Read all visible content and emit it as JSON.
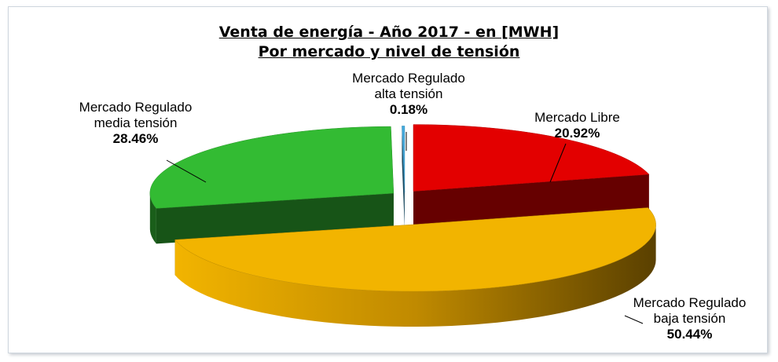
{
  "chart_data": {
    "type": "pie3d",
    "title": "Venta de energía - Año 2017 - en [MWH]",
    "subtitle": "Por mercado y nivel de tensión",
    "categories": [
      "Mercado Libre",
      "Mercado Regulado baja tensión",
      "Mercado Regulado media tensión",
      "Mercado Regulado alta tensión"
    ],
    "values": [
      20.92,
      50.44,
      28.46,
      0.18
    ],
    "value_labels": [
      "20.92%",
      "50.44%",
      "28.46%",
      "0.18%"
    ],
    "colors": [
      "#e30000",
      "#f2b400",
      "#33bb33",
      "#44aadd"
    ]
  }
}
